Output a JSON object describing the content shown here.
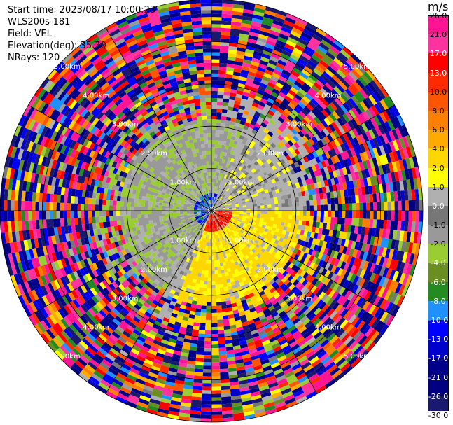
{
  "header": {
    "start_time": "Start time: 2023/08/17 10:00:23",
    "instrument": "WLS200s-181",
    "field": "Field: VEL",
    "elevation": "Elevation(deg): 35.30",
    "nrays": "NRays: 120"
  },
  "colorbar": {
    "unit": "m/s",
    "labels": [
      "26.0",
      "21.0",
      "17.0",
      "13.0",
      "10.0",
      "8.0",
      "6.0",
      "4.0",
      "2.0",
      "1.0",
      "0.0",
      "-1.0",
      "-2.0",
      "-4.0",
      "-6.0",
      "-8.0",
      "-10.0",
      "-13.0",
      "-17.0",
      "-21.0",
      "-26.0",
      "-30.0"
    ],
    "colors": [
      "#ff1493",
      "#ff33a0",
      "#ff0000",
      "#ff2a00",
      "#ff5500",
      "#ff8000",
      "#ffaa00",
      "#ffd700",
      "#ffff00",
      "#b0b0b0",
      "#777777",
      "#999999",
      "#9acd32",
      "#6b8e23",
      "#228b22",
      "#1e90ff",
      "#0000ff",
      "#0000cd",
      "#00008b",
      "#000080",
      "#191970"
    ]
  },
  "chart_data": {
    "type": "ppi",
    "field": "VEL",
    "units": "m/s",
    "n_rays": 120,
    "elevation_deg": 35.3,
    "range_rings_km": [
      1,
      2,
      3,
      4,
      5
    ],
    "ring_labels": [
      "1.00km",
      "2.00km",
      "3.00km",
      "4.00km",
      "5.00km"
    ],
    "color_scale": {
      "bounds": [
        26,
        21,
        17,
        13,
        10,
        8,
        6,
        4,
        2,
        1,
        0,
        -1,
        -2,
        -4,
        -6,
        -8,
        -10,
        -13,
        -17,
        -21,
        -26,
        -30
      ],
      "colors": [
        "#ff1493",
        "#ff33a0",
        "#ff0000",
        "#ff2a00",
        "#ff5500",
        "#ff8000",
        "#ffaa00",
        "#ffd700",
        "#ffff00",
        "#b0b0b0",
        "#777777",
        "#999999",
        "#9acd32",
        "#6b8e23",
        "#228b22",
        "#1e90ff",
        "#0000ff",
        "#0000cd",
        "#00008b",
        "#000080",
        "#191970"
      ]
    },
    "pattern": {
      "near_field_max_km": 2.2,
      "approach_sector_deg": [
        210,
        360
      ],
      "approach_value_ms": -1.8,
      "recede_sector_deg": [
        90,
        200
      ],
      "recede_value_ms": 2.5,
      "far_field": "noise"
    }
  }
}
